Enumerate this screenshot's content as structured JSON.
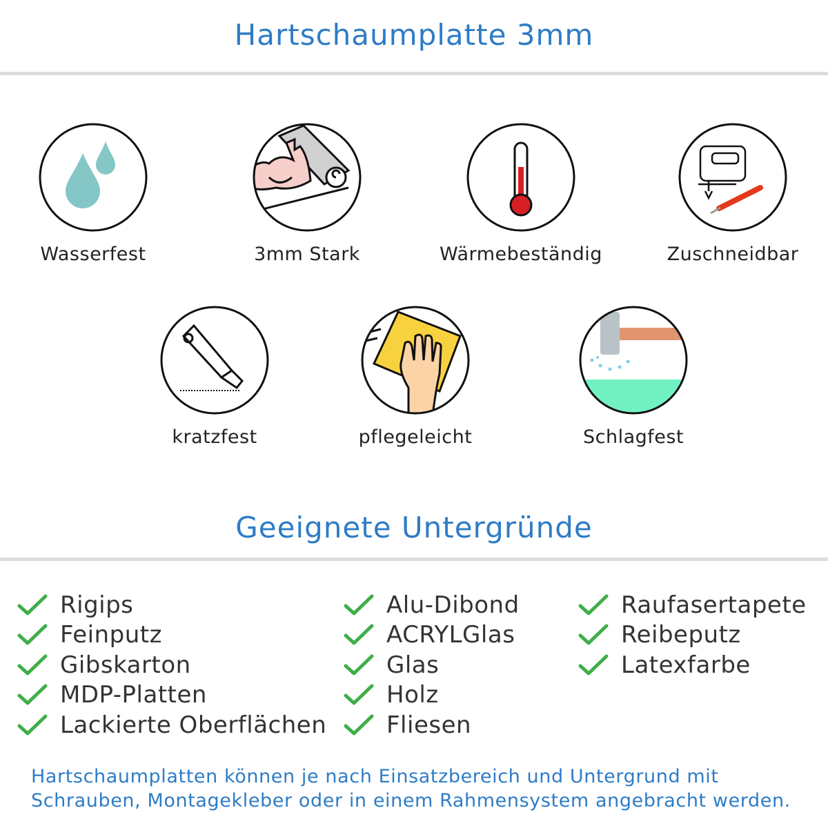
{
  "header": {
    "title": "Hartschaumplatte 3mm"
  },
  "features": [
    {
      "label": "Wasserfest",
      "icon": "water-drops-icon"
    },
    {
      "label": "3mm Stark",
      "icon": "strong-arm-icon"
    },
    {
      "label": "Wärmebeständig",
      "icon": "thermometer-icon"
    },
    {
      "label": "Zuschneidbar",
      "icon": "jigsaw-cutter-icon"
    },
    {
      "label": "kratzfest",
      "icon": "utility-knife-icon"
    },
    {
      "label": "pflegeleicht",
      "icon": "hand-sponge-icon"
    },
    {
      "label": "Schlagfest",
      "icon": "hammer-icon"
    }
  ],
  "surfaces": {
    "title": "Geeignete Untergründe",
    "check_color": "#3fae49",
    "columns": [
      [
        "Rigips",
        "Feinputz",
        "Gibskarton",
        "MDP-Platten",
        "Lackierte Oberflächen"
      ],
      [
        "Alu-Dibond",
        "ACRYLGlas",
        "Glas",
        "Holz",
        "Fliesen"
      ],
      [
        "Raufasertapete",
        "Reibeputz",
        "Latexfarbe"
      ]
    ]
  },
  "footer": {
    "line1": "Hartschaumplatten können je nach Einsatzbereich und Untergrund mit",
    "line2": "Schrauben, Montagekleber oder in einem Rahmensystem angebracht werden."
  },
  "colors": {
    "accent": "#2e7cc6",
    "rule": "#dcdcdc"
  }
}
